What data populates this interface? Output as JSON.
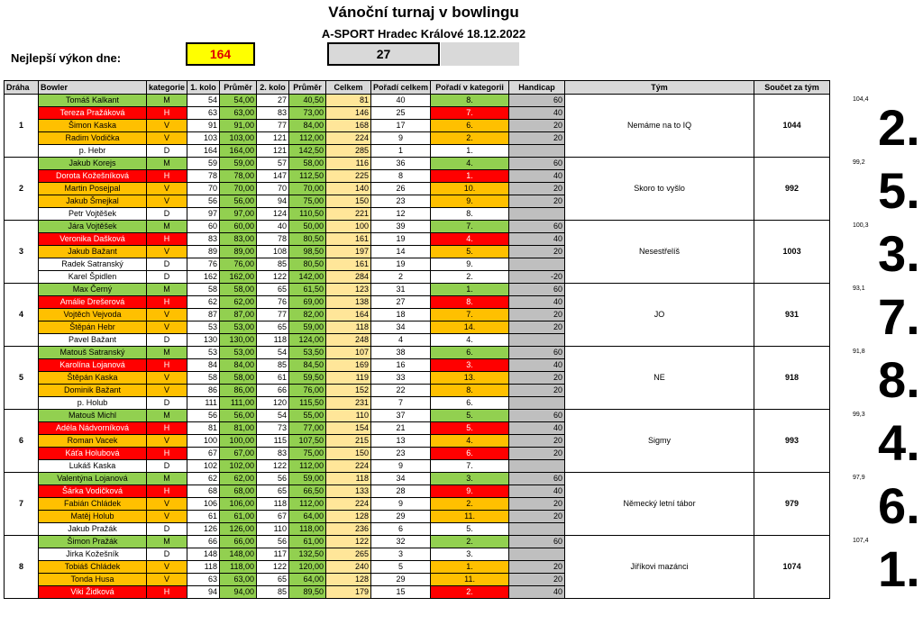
{
  "header": {
    "title": "Vánoční turnaj v bowlingu",
    "subtitle": "A-SPORT Hradec Králové 18.12.2022",
    "best_label": "Nejlepší výkon dne:",
    "best_value": "164",
    "second_value": "27"
  },
  "columns": [
    "Dráha",
    "Bowler",
    "kategorie",
    "1. kolo",
    "Průměr",
    "2. kolo",
    "Průměr",
    "Celkem",
    "Pořadí  celkem",
    "Pořadí v kategorii",
    "Handicap",
    "Tým",
    "Součet za tým"
  ],
  "lanes": [
    {
      "lane": "1",
      "team": "Nemáme na to IQ",
      "total": "1044",
      "avg": "104,4",
      "place": "2.",
      "rows": [
        {
          "name": "Tomáš Kalkant",
          "cat": "M",
          "r1": "54",
          "a1": "54,00",
          "r2": "27",
          "a2": "40,50",
          "sum": "81",
          "ov": "40",
          "rk": "8.",
          "hc": "60",
          "c": "g"
        },
        {
          "name": "Tereza Pražáková",
          "cat": "H",
          "r1": "63",
          "a1": "63,00",
          "r2": "83",
          "a2": "73,00",
          "sum": "146",
          "ov": "25",
          "rk": "7.",
          "hc": "40",
          "c": "r"
        },
        {
          "name": "Šimon Kaska",
          "cat": "V",
          "r1": "91",
          "a1": "91,00",
          "r2": "77",
          "a2": "84,00",
          "sum": "168",
          "ov": "17",
          "rk": "6.",
          "hc": "20",
          "c": "o"
        },
        {
          "name": "Radim Vodička",
          "cat": "V",
          "r1": "103",
          "a1": "103,00",
          "r2": "121",
          "a2": "112,00",
          "sum": "224",
          "ov": "9",
          "rk": "2.",
          "hc": "20",
          "c": "o"
        },
        {
          "name": "p. Hebr",
          "cat": "D",
          "r1": "164",
          "a1": "164,00",
          "r2": "121",
          "a2": "142,50",
          "sum": "285",
          "ov": "1",
          "rk": "1.",
          "hc": "",
          "c": "w"
        }
      ]
    },
    {
      "lane": "2",
      "team": "Skoro to vyšlo",
      "total": "992",
      "avg": "99,2",
      "place": "5.",
      "rows": [
        {
          "name": "Jakub Korejs",
          "cat": "M",
          "r1": "59",
          "a1": "59,00",
          "r2": "57",
          "a2": "58,00",
          "sum": "116",
          "ov": "36",
          "rk": "4.",
          "hc": "60",
          "c": "g"
        },
        {
          "name": "Dorota Kožešníková",
          "cat": "H",
          "r1": "78",
          "a1": "78,00",
          "r2": "147",
          "a2": "112,50",
          "sum": "225",
          "ov": "8",
          "rk": "1.",
          "hc": "40",
          "c": "r"
        },
        {
          "name": "Martin Posejpal",
          "cat": "V",
          "r1": "70",
          "a1": "70,00",
          "r2": "70",
          "a2": "70,00",
          "sum": "140",
          "ov": "26",
          "rk": "10.",
          "hc": "20",
          "c": "o"
        },
        {
          "name": "Jakub Šmejkal",
          "cat": "V",
          "r1": "56",
          "a1": "56,00",
          "r2": "94",
          "a2": "75,00",
          "sum": "150",
          "ov": "23",
          "rk": "9.",
          "hc": "20",
          "c": "o"
        },
        {
          "name": "Petr Vojtěšek",
          "cat": "D",
          "r1": "97",
          "a1": "97,00",
          "r2": "124",
          "a2": "110,50",
          "sum": "221",
          "ov": "12",
          "rk": "8.",
          "hc": "",
          "c": "w"
        }
      ]
    },
    {
      "lane": "3",
      "team": "Nesestřelíš",
      "total": "1003",
      "avg": "100,3",
      "place": "3.",
      "rows": [
        {
          "name": "Jára Vojtěšek",
          "cat": "M",
          "r1": "60",
          "a1": "60,00",
          "r2": "40",
          "a2": "50,00",
          "sum": "100",
          "ov": "39",
          "rk": "7.",
          "hc": "60",
          "c": "g"
        },
        {
          "name": "Veronika Dašková",
          "cat": "H",
          "r1": "83",
          "a1": "83,00",
          "r2": "78",
          "a2": "80,50",
          "sum": "161",
          "ov": "19",
          "rk": "4.",
          "hc": "40",
          "c": "r"
        },
        {
          "name": "Jakub Bažant",
          "cat": "V",
          "r1": "89",
          "a1": "89,00",
          "r2": "108",
          "a2": "98,50",
          "sum": "197",
          "ov": "14",
          "rk": "5.",
          "hc": "20",
          "c": "o"
        },
        {
          "name": "Radek Satranský",
          "cat": "D",
          "r1": "76",
          "a1": "76,00",
          "r2": "85",
          "a2": "80,50",
          "sum": "161",
          "ov": "19",
          "rk": "9.",
          "hc": "",
          "c": "w"
        },
        {
          "name": "Karel Špidlen",
          "cat": "D",
          "r1": "162",
          "a1": "162,00",
          "r2": "122",
          "a2": "142,00",
          "sum": "284",
          "ov": "2",
          "rk": "2.",
          "hc": "-20",
          "c": "w"
        }
      ]
    },
    {
      "lane": "4",
      "team": "JO",
      "total": "931",
      "avg": "93,1",
      "place": "7.",
      "rows": [
        {
          "name": "Max Černý",
          "cat": "M",
          "r1": "58",
          "a1": "58,00",
          "r2": "65",
          "a2": "61,50",
          "sum": "123",
          "ov": "31",
          "rk": "1.",
          "hc": "60",
          "c": "g"
        },
        {
          "name": "Amálie Drešerová",
          "cat": "H",
          "r1": "62",
          "a1": "62,00",
          "r2": "76",
          "a2": "69,00",
          "sum": "138",
          "ov": "27",
          "rk": "8.",
          "hc": "40",
          "c": "r"
        },
        {
          "name": "Vojtěch Vejvoda",
          "cat": "V",
          "r1": "87",
          "a1": "87,00",
          "r2": "77",
          "a2": "82,00",
          "sum": "164",
          "ov": "18",
          "rk": "7.",
          "hc": "20",
          "c": "o"
        },
        {
          "name": "Štěpán Hebr",
          "cat": "V",
          "r1": "53",
          "a1": "53,00",
          "r2": "65",
          "a2": "59,00",
          "sum": "118",
          "ov": "34",
          "rk": "14.",
          "hc": "20",
          "c": "o"
        },
        {
          "name": "Pavel Bažant",
          "cat": "D",
          "r1": "130",
          "a1": "130,00",
          "r2": "118",
          "a2": "124,00",
          "sum": "248",
          "ov": "4",
          "rk": "4.",
          "hc": "",
          "c": "w"
        }
      ]
    },
    {
      "lane": "5",
      "team": "NE",
      "total": "918",
      "avg": "91,8",
      "place": "8.",
      "rows": [
        {
          "name": "Matouš Satranský",
          "cat": "M",
          "r1": "53",
          "a1": "53,00",
          "r2": "54",
          "a2": "53,50",
          "sum": "107",
          "ov": "38",
          "rk": "6.",
          "hc": "60",
          "c": "g"
        },
        {
          "name": "Karolína Lojanová",
          "cat": "H",
          "r1": "84",
          "a1": "84,00",
          "r2": "85",
          "a2": "84,50",
          "sum": "169",
          "ov": "16",
          "rk": "3.",
          "hc": "40",
          "c": "r"
        },
        {
          "name": "Štěpán Kaska",
          "cat": "V",
          "r1": "58",
          "a1": "58,00",
          "r2": "61",
          "a2": "59,50",
          "sum": "119",
          "ov": "33",
          "rk": "13.",
          "hc": "20",
          "c": "o"
        },
        {
          "name": "Dominik Bažant",
          "cat": "V",
          "r1": "86",
          "a1": "86,00",
          "r2": "66",
          "a2": "76,00",
          "sum": "152",
          "ov": "22",
          "rk": "8.",
          "hc": "20",
          "c": "o"
        },
        {
          "name": "p. Holub",
          "cat": "D",
          "r1": "111",
          "a1": "111,00",
          "r2": "120",
          "a2": "115,50",
          "sum": "231",
          "ov": "7",
          "rk": "6.",
          "hc": "",
          "c": "w"
        }
      ]
    },
    {
      "lane": "6",
      "team": "Sigmy",
      "total": "993",
      "avg": "99,3",
      "place": "4.",
      "rows": [
        {
          "name": "Matouš Michl",
          "cat": "M",
          "r1": "56",
          "a1": "56,00",
          "r2": "54",
          "a2": "55,00",
          "sum": "110",
          "ov": "37",
          "rk": "5.",
          "hc": "60",
          "c": "g"
        },
        {
          "name": "Adéla Nádvorníková",
          "cat": "H",
          "r1": "81",
          "a1": "81,00",
          "r2": "73",
          "a2": "77,00",
          "sum": "154",
          "ov": "21",
          "rk": "5.",
          "hc": "40",
          "c": "r"
        },
        {
          "name": "Roman Vacek",
          "cat": "V",
          "r1": "100",
          "a1": "100,00",
          "r2": "115",
          "a2": "107,50",
          "sum": "215",
          "ov": "13",
          "rk": "4.",
          "hc": "20",
          "c": "o"
        },
        {
          "name": "Káťa Holubová",
          "cat": "H",
          "r1": "67",
          "a1": "67,00",
          "r2": "83",
          "a2": "75,00",
          "sum": "150",
          "ov": "23",
          "rk": "6.",
          "hc": "20",
          "c": "r"
        },
        {
          "name": "Lukáš Kaska",
          "cat": "D",
          "r1": "102",
          "a1": "102,00",
          "r2": "122",
          "a2": "112,00",
          "sum": "224",
          "ov": "9",
          "rk": "7.",
          "hc": "",
          "c": "w"
        }
      ]
    },
    {
      "lane": "7",
      "team": "Německý letní tábor",
      "total": "979",
      "avg": "97,9",
      "place": "6.",
      "rows": [
        {
          "name": "Valentýna Lojanová",
          "cat": "M",
          "r1": "62",
          "a1": "62,00",
          "r2": "56",
          "a2": "59,00",
          "sum": "118",
          "ov": "34",
          "rk": "3.",
          "hc": "60",
          "c": "g"
        },
        {
          "name": "Šárka Vodičková",
          "cat": "H",
          "r1": "68",
          "a1": "68,00",
          "r2": "65",
          "a2": "66,50",
          "sum": "133",
          "ov": "28",
          "rk": "9.",
          "hc": "40",
          "c": "r"
        },
        {
          "name": "Fabián Chládek",
          "cat": "V",
          "r1": "106",
          "a1": "106,00",
          "r2": "118",
          "a2": "112,00",
          "sum": "224",
          "ov": "9",
          "rk": "2.",
          "hc": "20",
          "c": "o"
        },
        {
          "name": "Matěj Holub",
          "cat": "V",
          "r1": "61",
          "a1": "61,00",
          "r2": "67",
          "a2": "64,00",
          "sum": "128",
          "ov": "29",
          "rk": "11.",
          "hc": "20",
          "c": "o"
        },
        {
          "name": "Jakub Pražák",
          "cat": "D",
          "r1": "126",
          "a1": "126,00",
          "r2": "110",
          "a2": "118,00",
          "sum": "236",
          "ov": "6",
          "rk": "5.",
          "hc": "",
          "c": "w"
        }
      ]
    },
    {
      "lane": "8",
      "team": "Jiříkovi mazánci",
      "total": "1074",
      "avg": "107,4",
      "place": "1.",
      "rows": [
        {
          "name": "Šimon Pražák",
          "cat": "M",
          "r1": "66",
          "a1": "66,00",
          "r2": "56",
          "a2": "61,00",
          "sum": "122",
          "ov": "32",
          "rk": "2.",
          "hc": "60",
          "c": "g"
        },
        {
          "name": "Jirka Kožešník",
          "cat": "D",
          "r1": "148",
          "a1": "148,00",
          "r2": "117",
          "a2": "132,50",
          "sum": "265",
          "ov": "3",
          "rk": "3.",
          "hc": "",
          "c": "w"
        },
        {
          "name": "Tobiáš Chládek",
          "cat": "V",
          "r1": "118",
          "a1": "118,00",
          "r2": "122",
          "a2": "120,00",
          "sum": "240",
          "ov": "5",
          "rk": "1.",
          "hc": "20",
          "c": "o"
        },
        {
          "name": "Tonda Husa",
          "cat": "V",
          "r1": "63",
          "a1": "63,00",
          "r2": "65",
          "a2": "64,00",
          "sum": "128",
          "ov": "29",
          "rk": "11.",
          "hc": "20",
          "c": "o"
        },
        {
          "name": "Viki Židková",
          "cat": "H",
          "r1": "94",
          "a1": "94,00",
          "r2": "85",
          "a2": "89,50",
          "sum": "179",
          "ov": "15",
          "rk": "2.",
          "hc": "40",
          "c": "r"
        }
      ]
    }
  ]
}
